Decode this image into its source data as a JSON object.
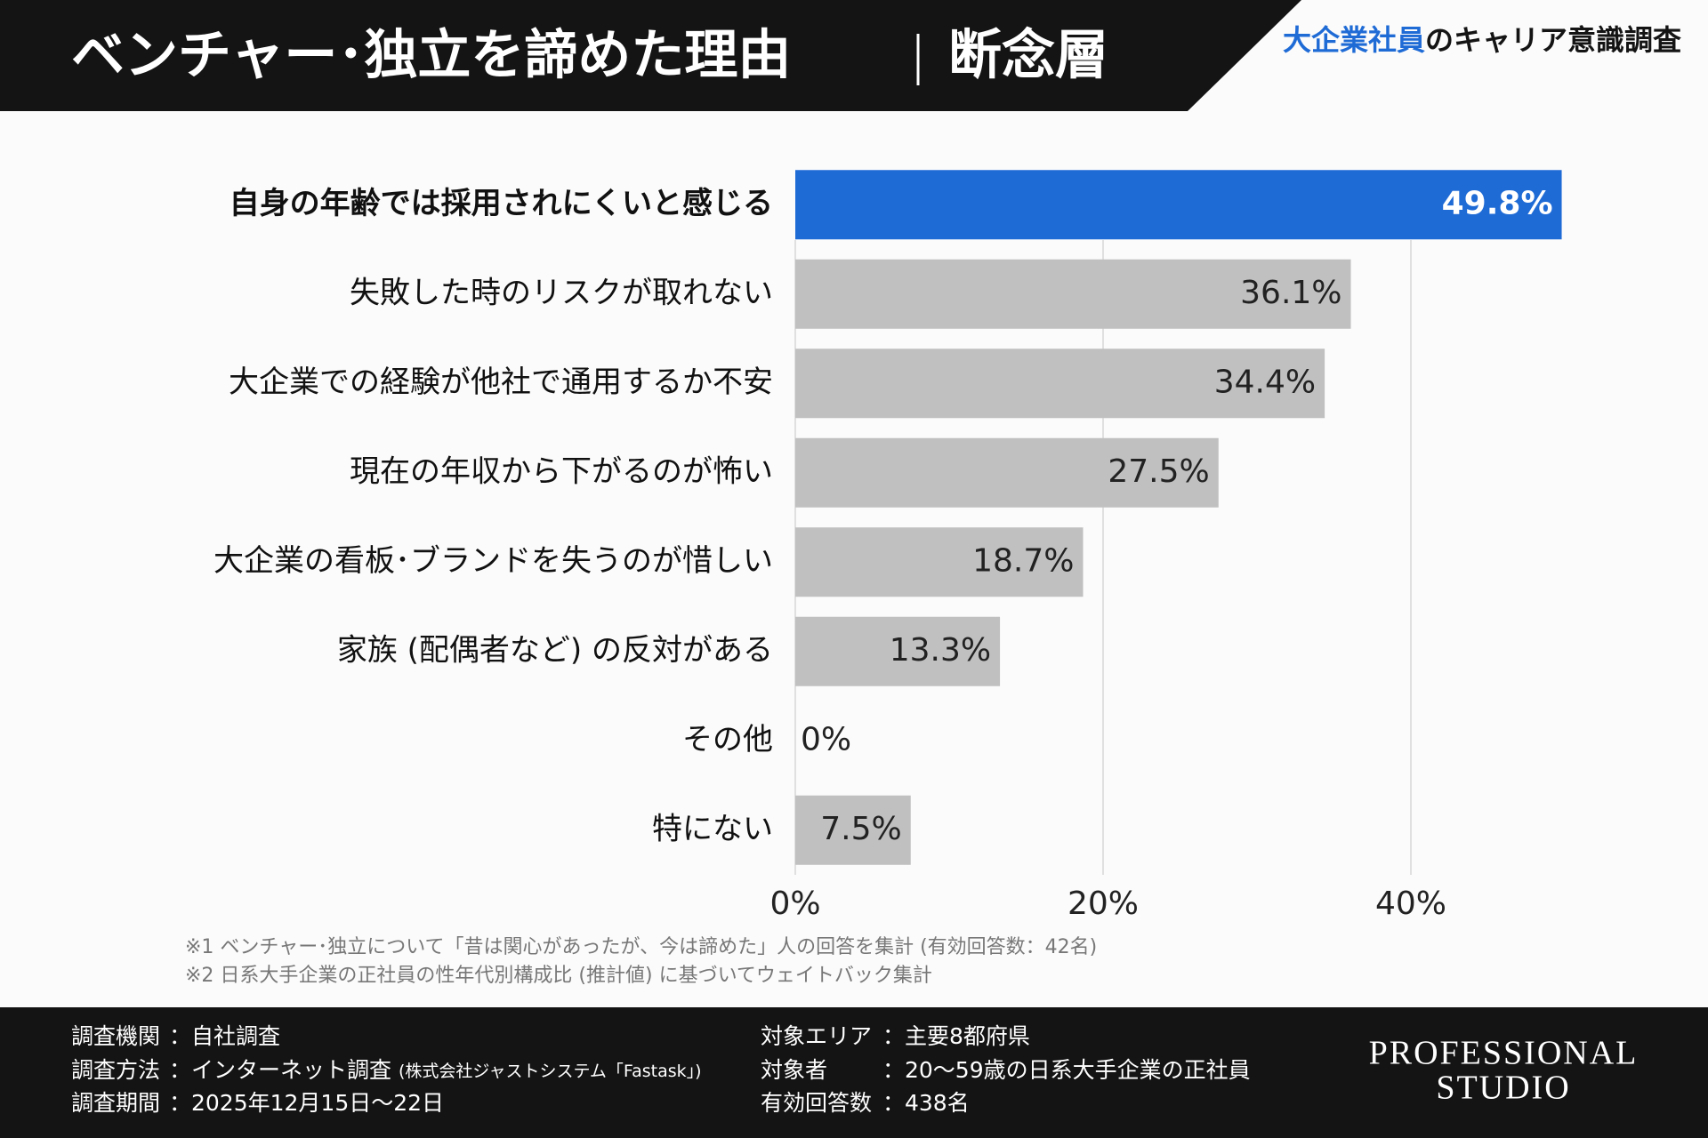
{
  "header": {
    "title": "ベンチャー･独立を諦めた理由",
    "subtitle": "断念層",
    "survey_highlight": "大企業社員",
    "survey_rest": "のキャリア意識調査"
  },
  "chart_data": {
    "type": "bar",
    "orientation": "horizontal",
    "categories": [
      "自身の年齢では採用されにくいと感じる",
      "失敗した時のリスクが取れない",
      "大企業での経験が他社で通用するか不安",
      "現在の年収から下がるのが怖い",
      "大企業の看板･ブランドを失うのが惜しい",
      "家族 (配偶者など) の反対がある",
      "その他",
      "特にない"
    ],
    "values": [
      49.8,
      36.1,
      34.4,
      27.5,
      18.7,
      13.3,
      0,
      7.5
    ],
    "value_labels": [
      "49.8%",
      "36.1%",
      "34.4%",
      "27.5%",
      "18.7%",
      "13.3%",
      "0%",
      "7.5%"
    ],
    "colors": [
      "#1f6bd6",
      "#c0c0c0",
      "#c0c0c0",
      "#c0c0c0",
      "#c0c0c0",
      "#c0c0c0",
      "#c0c0c0",
      "#c0c0c0"
    ],
    "xlim": [
      0,
      50
    ],
    "xticks": [
      {
        "value": 0,
        "label": "0%"
      },
      {
        "value": 20,
        "label": "20%"
      },
      {
        "value": 40,
        "label": "40%"
      }
    ],
    "grid": true
  },
  "notes": [
    "※1 ベンチャー･独立について「昔は関心があったが、今は諦めた」人の回答を集計 (有効回答数：42名)",
    "※2 日系大手企業の正社員の性年代別構成比 (推計値) に基づいてウェイトバック集計"
  ],
  "footer": {
    "left": [
      {
        "label": "調査機関",
        "value": "：自社調査"
      },
      {
        "label": "調査方法",
        "value": "：インターネット調査",
        "note": "(株式会社ジャストシステム「Fastask」)"
      },
      {
        "label": "調査期間",
        "value": "：2025年12月15日〜22日"
      }
    ],
    "right": [
      {
        "label": "対象エリア",
        "value": "：主要8都府県"
      },
      {
        "label": "対象者",
        "value": "：20〜59歳の日系大手企業の正社員"
      },
      {
        "label": "有効回答数",
        "value": "：438名"
      }
    ],
    "logo": [
      "PROFESSIONAL",
      "STUDIO"
    ]
  }
}
